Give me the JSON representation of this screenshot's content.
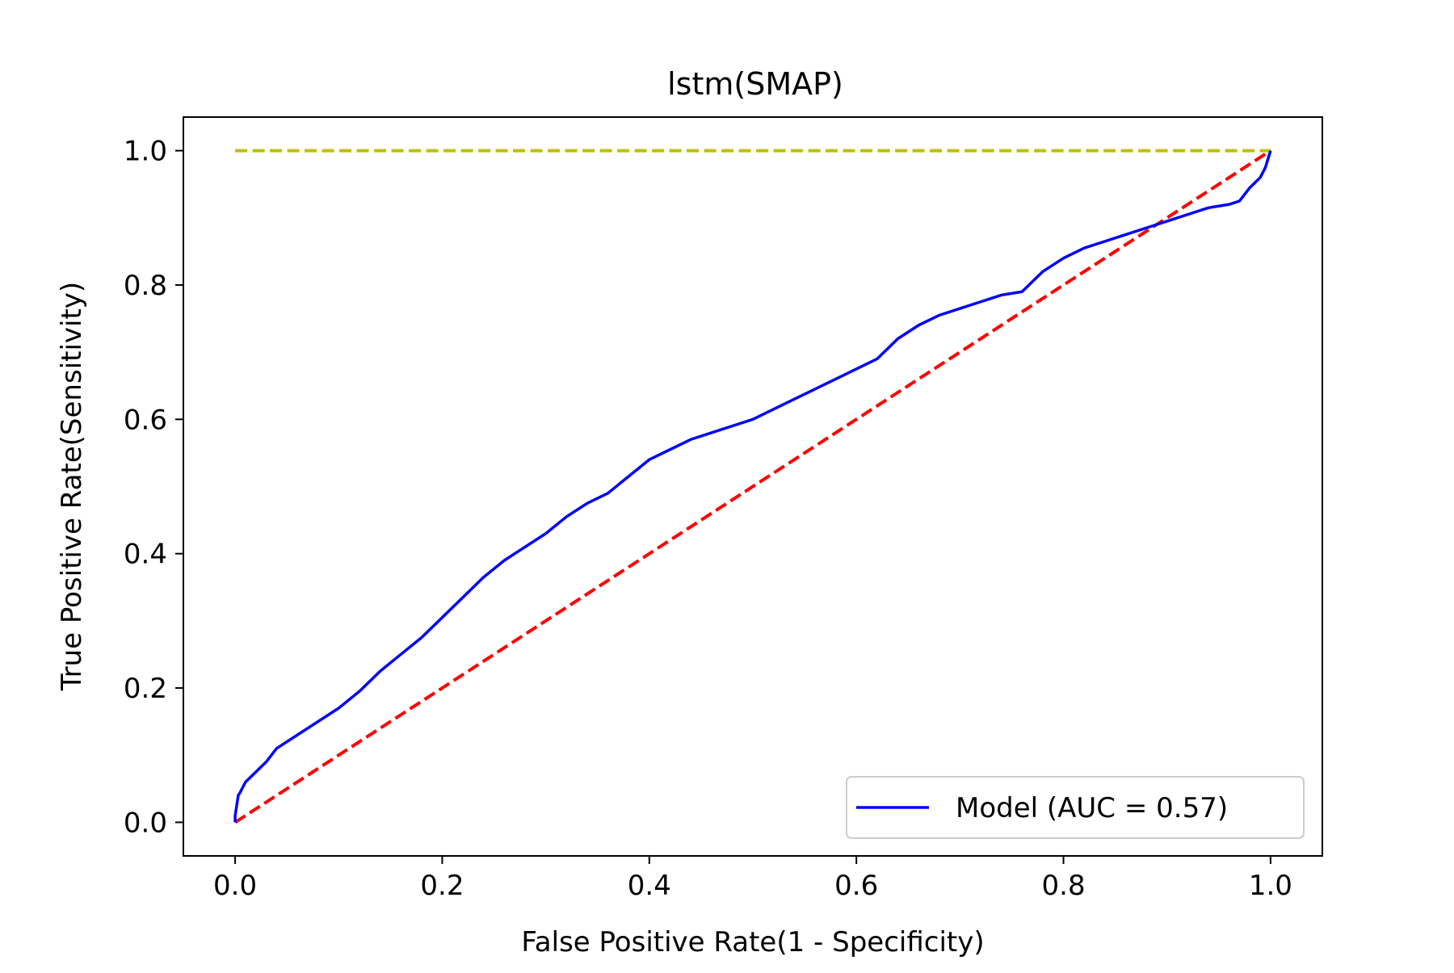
{
  "chart_data": {
    "type": "line",
    "title": "lstm(SMAP)",
    "xlabel": "False Positive Rate(1 - Specificity)",
    "ylabel": "True Positive Rate(Sensitivity)",
    "xlim": [
      -0.05,
      1.05
    ],
    "ylim": [
      -0.05,
      1.05
    ],
    "xticks": [
      0.0,
      0.2,
      0.4,
      0.6,
      0.8,
      1.0
    ],
    "yticks": [
      0.0,
      0.2,
      0.4,
      0.6,
      0.8,
      1.0
    ],
    "xtick_labels": [
      "0.0",
      "0.2",
      "0.4",
      "0.6",
      "0.8",
      "1.0"
    ],
    "ytick_labels": [
      "0.0",
      "0.2",
      "0.4",
      "0.6",
      "0.8",
      "1.0"
    ],
    "grid": false,
    "legend_position": "lower-right",
    "series": [
      {
        "name": "Model (AUC = 0.57)",
        "color": "#0000ff",
        "style": "solid",
        "x": [
          0.0,
          0.0,
          0.003,
          0.005,
          0.01,
          0.02,
          0.03,
          0.04,
          0.05,
          0.06,
          0.08,
          0.1,
          0.12,
          0.14,
          0.16,
          0.18,
          0.2,
          0.22,
          0.24,
          0.26,
          0.28,
          0.3,
          0.32,
          0.34,
          0.36,
          0.38,
          0.4,
          0.42,
          0.44,
          0.46,
          0.48,
          0.5,
          0.52,
          0.54,
          0.56,
          0.58,
          0.6,
          0.62,
          0.63,
          0.64,
          0.66,
          0.68,
          0.7,
          0.72,
          0.74,
          0.76,
          0.77,
          0.78,
          0.8,
          0.82,
          0.84,
          0.86,
          0.88,
          0.9,
          0.92,
          0.94,
          0.96,
          0.97,
          0.98,
          0.99,
          0.995,
          1.0
        ],
        "y": [
          0.0,
          0.01,
          0.04,
          0.045,
          0.06,
          0.075,
          0.09,
          0.11,
          0.12,
          0.13,
          0.15,
          0.17,
          0.195,
          0.225,
          0.25,
          0.275,
          0.305,
          0.335,
          0.365,
          0.39,
          0.41,
          0.43,
          0.455,
          0.475,
          0.49,
          0.515,
          0.54,
          0.555,
          0.57,
          0.58,
          0.59,
          0.6,
          0.615,
          0.63,
          0.645,
          0.66,
          0.675,
          0.69,
          0.705,
          0.72,
          0.74,
          0.755,
          0.765,
          0.775,
          0.785,
          0.79,
          0.805,
          0.82,
          0.84,
          0.855,
          0.865,
          0.875,
          0.885,
          0.895,
          0.905,
          0.915,
          0.92,
          0.925,
          0.945,
          0.96,
          0.975,
          1.0
        ]
      },
      {
        "color": "#ff0000",
        "style": "dashed",
        "x": [
          0.0,
          1.0
        ],
        "y": [
          0.0,
          1.0
        ]
      },
      {
        "color": "#bfbf00",
        "style": "dashed",
        "x": [
          0.0,
          1.0
        ],
        "y": [
          1.0,
          1.0
        ]
      }
    ],
    "legend": [
      {
        "label": "Model (AUC = 0.57)",
        "color": "#0000ff"
      }
    ]
  }
}
